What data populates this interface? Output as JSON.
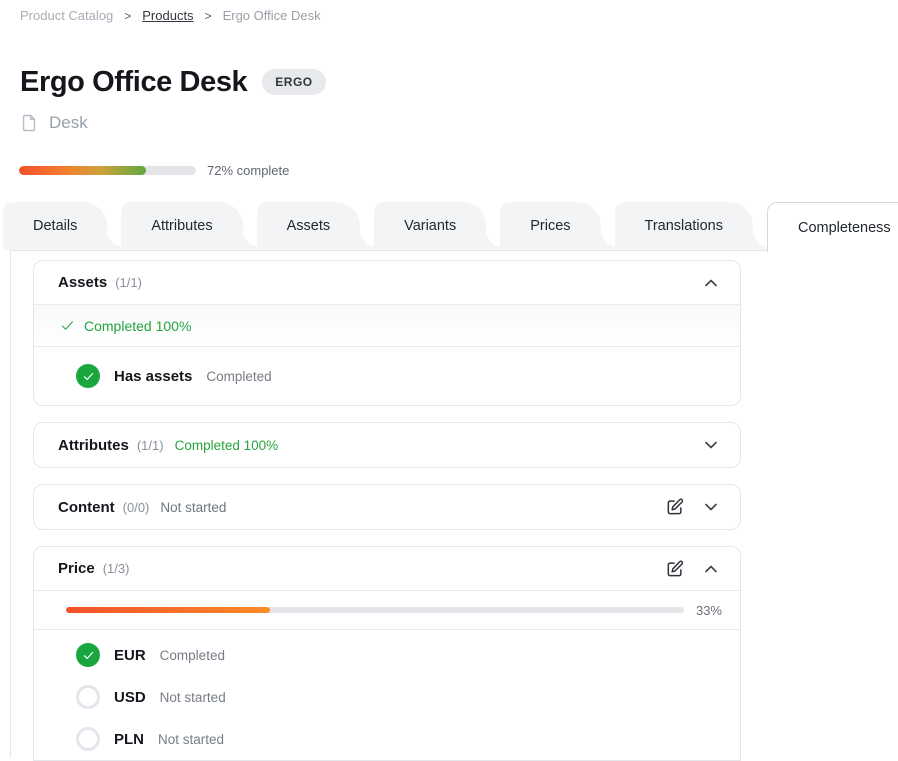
{
  "breadcrumb": {
    "separator": ">",
    "items": [
      {
        "label": "Product Catalog"
      },
      {
        "label": "Products"
      },
      {
        "label": "Ergo Office Desk"
      }
    ]
  },
  "header": {
    "title": "Ergo Office Desk",
    "badge": "ERGO",
    "category": "Desk"
  },
  "overall_progress": {
    "percent": 72,
    "label": "72% complete"
  },
  "tabs": [
    {
      "label": "Details",
      "active": false
    },
    {
      "label": "Attributes",
      "active": false
    },
    {
      "label": "Assets",
      "active": false
    },
    {
      "label": "Variants",
      "active": false
    },
    {
      "label": "Prices",
      "active": false
    },
    {
      "label": "Translations",
      "active": false
    },
    {
      "label": "Completeness",
      "active": true
    }
  ],
  "completeness": {
    "sections": [
      {
        "title": "Assets",
        "count": "(1/1)",
        "expanded": true,
        "summary_check": "✓",
        "summary": "Completed 100%",
        "items": [
          {
            "name": "Has assets",
            "status": "Completed",
            "done": true
          }
        ]
      },
      {
        "title": "Attributes",
        "count": "(1/1)",
        "expanded": false,
        "status": "Completed 100%",
        "status_type": "completed"
      },
      {
        "title": "Content",
        "count": "(0/0)",
        "expanded": false,
        "status": "Not started",
        "status_type": "not_started",
        "editable": true
      },
      {
        "title": "Price",
        "count": "(1/3)",
        "expanded": true,
        "editable": true,
        "progress_percent": 33,
        "progress_label": "33%",
        "items": [
          {
            "name": "EUR",
            "status": "Completed",
            "done": true
          },
          {
            "name": "USD",
            "status": "Not started",
            "done": false
          },
          {
            "name": "PLN",
            "status": "Not started",
            "done": false
          }
        ]
      }
    ]
  },
  "icons": {
    "category": "file-icon",
    "collapse": "chevron-up-icon",
    "expand": "chevron-down-icon",
    "edit": "edit-icon",
    "done": "check-circle-icon",
    "not_done": "empty-circle-icon"
  },
  "colors": {
    "accent_green": "#1aa63e",
    "green_text": "#27a33f",
    "bar_gradient_start": "#f4502b",
    "bar_gradient_end_overall": "#5fa83f",
    "bar_gradient_end_price": "#fb8b27",
    "track_gray": "#e4e5e9",
    "badge_bg": "#e7e9ec",
    "tab_bg": "#f3f4f5",
    "border_gray": "#e4e7ea"
  }
}
